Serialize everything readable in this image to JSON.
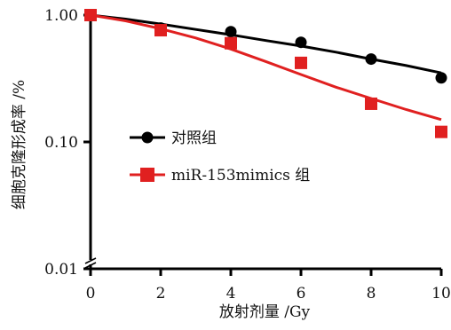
{
  "chart_data": {
    "type": "scatter",
    "xlabel": "放射剂量 /Gy",
    "ylabel": "细胞克隆形成率 /%",
    "x_scale": "linear",
    "y_scale": "log",
    "xlim": [
      0,
      10
    ],
    "ylim": [
      0.01,
      1.0
    ],
    "x_ticks": [
      0,
      2,
      4,
      6,
      8,
      10
    ],
    "x_tick_labels": [
      "0",
      "2",
      "4",
      "6",
      "8",
      "10"
    ],
    "y_ticks": [
      0.01,
      0.1,
      1.0
    ],
    "y_tick_labels": [
      "0.01",
      "0.10",
      "1.00"
    ],
    "y_axis_break": true,
    "grid": false,
    "legend_position": "center-left",
    "series": [
      {
        "name": "对照组",
        "marker": "circle",
        "color": "#000000",
        "x": [
          0,
          2,
          4,
          6,
          8,
          10
        ],
        "y": [
          1.0,
          0.79,
          0.74,
          0.61,
          0.45,
          0.32
        ],
        "fit_x": [
          0,
          1,
          2,
          3,
          4,
          5,
          6,
          7,
          8,
          9,
          10
        ],
        "fit_y": [
          1.0,
          0.93,
          0.85,
          0.77,
          0.7,
          0.63,
          0.57,
          0.51,
          0.45,
          0.4,
          0.35
        ]
      },
      {
        "name": "miR-153mimics 组",
        "marker": "square",
        "color": "#e02020",
        "x": [
          0,
          2,
          4,
          6,
          8,
          10
        ],
        "y": [
          1.0,
          0.76,
          0.6,
          0.42,
          0.2,
          0.12
        ],
        "fit_x": [
          0,
          1,
          2,
          3,
          4,
          5,
          6,
          7,
          8,
          9,
          10
        ],
        "fit_y": [
          1.0,
          0.9,
          0.78,
          0.66,
          0.54,
          0.43,
          0.34,
          0.27,
          0.22,
          0.18,
          0.15
        ]
      }
    ]
  }
}
